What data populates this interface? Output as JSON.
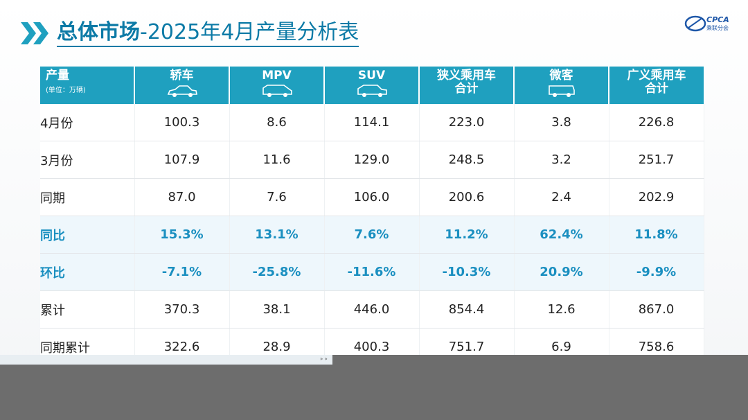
{
  "title": {
    "bold": "总体市场",
    "rest": "-2025年4月产量分析表"
  },
  "logo": {
    "text": "CPCA",
    "sub": "乘联分会"
  },
  "table": {
    "corner": {
      "label": "产量",
      "unit": "(单位：万辆)"
    },
    "columns": [
      {
        "line1": "轿车",
        "line2": "",
        "icon": "sedan-icon"
      },
      {
        "line1": "MPV",
        "line2": "",
        "icon": "mpv-icon"
      },
      {
        "line1": "SUV",
        "line2": "",
        "icon": "suv-icon"
      },
      {
        "line1": "狭义乘用车",
        "line2": "合计",
        "icon": ""
      },
      {
        "line1": "微客",
        "line2": "",
        "icon": "minivan-icon"
      },
      {
        "line1": "广义乘用车",
        "line2": "合计",
        "icon": ""
      }
    ],
    "rows": [
      {
        "label": "4月份",
        "values": [
          "100.3",
          "8.6",
          "114.1",
          "223.0",
          "3.8",
          "226.8"
        ],
        "pct": false
      },
      {
        "label": "3月份",
        "values": [
          "107.9",
          "11.6",
          "129.0",
          "248.5",
          "3.2",
          "251.7"
        ],
        "pct": false
      },
      {
        "label": "同期",
        "values": [
          "87.0",
          "7.6",
          "106.0",
          "200.6",
          "2.4",
          "202.9"
        ],
        "pct": false
      },
      {
        "label": "同比",
        "values": [
          "15.3%",
          "13.1%",
          "7.6%",
          "11.2%",
          "62.4%",
          "11.8%"
        ],
        "pct": true
      },
      {
        "label": "环比",
        "values": [
          "-7.1%",
          "-25.8%",
          "-11.6%",
          "-10.3%",
          "20.9%",
          "-9.9%"
        ],
        "pct": true
      },
      {
        "label": "累计",
        "values": [
          "370.3",
          "38.1",
          "446.0",
          "854.4",
          "12.6",
          "867.0"
        ],
        "pct": false
      },
      {
        "label": "同期累计",
        "values": [
          "322.6",
          "28.9",
          "400.3",
          "751.7",
          "6.9",
          "758.6"
        ],
        "pct": false
      }
    ]
  },
  "overlay_marker": "» »",
  "colors": {
    "header_bg": "#1fa0bf",
    "accent": "#1a8fc0",
    "title": "#0c7aa6"
  }
}
